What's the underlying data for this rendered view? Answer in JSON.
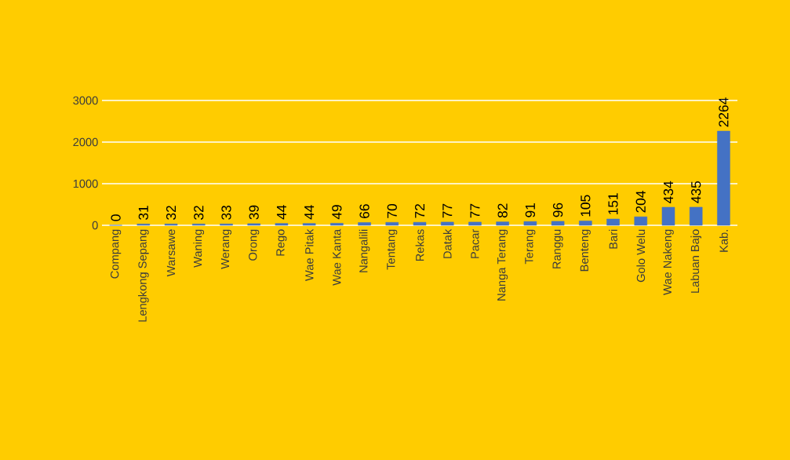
{
  "chart_data": {
    "type": "bar",
    "categories": [
      "Compang",
      "Lengkong Sepang",
      "Warsawe",
      "Waning",
      "Werang",
      "Orong",
      "Rego",
      "Wae Pitak",
      "Wae Kanta",
      "Nangalili",
      "Tentang",
      "Rekas",
      "Datak",
      "Pacar",
      "Nanga Terang",
      "Terang",
      "Ranggu",
      "Benteng",
      "Bari",
      "Golo Welu",
      "Wae Nakeng",
      "Labuan Bajo",
      "Kab."
    ],
    "values": [
      0,
      31,
      32,
      32,
      33,
      39,
      44,
      44,
      49,
      66,
      70,
      72,
      77,
      77,
      82,
      91,
      96,
      105,
      151,
      204,
      434,
      435,
      2264
    ],
    "color": "#4472c4",
    "ylim": [
      0,
      3000
    ],
    "yticks": [
      0,
      1000,
      2000,
      3000
    ],
    "grid": "y",
    "data_labels": true
  }
}
